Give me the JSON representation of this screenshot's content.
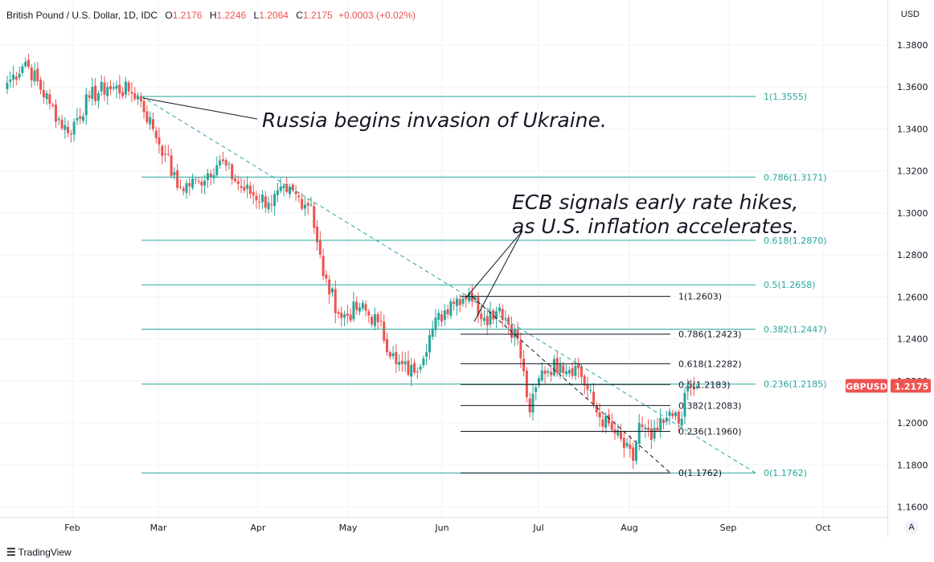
{
  "header": {
    "symbol_desc": "British Pound / U.S. Dollar, 1D, IDC",
    "open_label": "O",
    "open": "1.2176",
    "high_label": "H",
    "high": "1.2246",
    "low_label": "L",
    "low": "1.2064",
    "close_label": "C",
    "close": "1.2175",
    "change": "+0.0003 (+0.02%)"
  },
  "currency_label": "USD",
  "price_tag": {
    "symbol": "GBPUSD",
    "price": "1.2175",
    "color": "#ef5350"
  },
  "footer": {
    "brand": "TradingView"
  },
  "auto_button": "A",
  "colors": {
    "up": "#26a69a",
    "down": "#ef5350",
    "fib_green": "#26a69a",
    "fib_black": "#131722"
  },
  "chart_data": {
    "type": "candlestick",
    "title": "British Pound / U.S. Dollar, 1D, IDC",
    "x_ticks": [
      "Feb",
      "Mar",
      "Apr",
      "May",
      "Jun",
      "Jul",
      "Aug",
      "Sep",
      "Oct"
    ],
    "y_ticks": [
      "1.3800",
      "1.3600",
      "1.3400",
      "1.3200",
      "1.3000",
      "1.2800",
      "1.2600",
      "1.2400",
      "1.2200",
      "1.2000",
      "1.1800",
      "1.1600"
    ],
    "ylim": [
      1.156,
      1.39
    ],
    "grid": true,
    "anchors": [
      {
        "d": 0,
        "p": 1.362
      },
      {
        "d": 6,
        "p": 1.372
      },
      {
        "d": 14,
        "p": 1.352
      },
      {
        "d": 20,
        "p": 1.338
      },
      {
        "d": 27,
        "p": 1.355
      },
      {
        "d": 33,
        "p": 1.36
      },
      {
        "d": 40,
        "p": 1.358
      },
      {
        "d": 43,
        "p": 1.356
      },
      {
        "d": 48,
        "p": 1.34
      },
      {
        "d": 52,
        "p": 1.328
      },
      {
        "d": 56,
        "p": 1.312
      },
      {
        "d": 63,
        "p": 1.315
      },
      {
        "d": 70,
        "p": 1.325
      },
      {
        "d": 77,
        "p": 1.312
      },
      {
        "d": 86,
        "p": 1.305
      },
      {
        "d": 92,
        "p": 1.31
      },
      {
        "d": 100,
        "p": 1.304
      },
      {
        "d": 104,
        "p": 1.27
      },
      {
        "d": 110,
        "p": 1.25
      },
      {
        "d": 116,
        "p": 1.255
      },
      {
        "d": 122,
        "p": 1.248
      },
      {
        "d": 128,
        "p": 1.228
      },
      {
        "d": 134,
        "p": 1.224
      },
      {
        "d": 140,
        "p": 1.245
      },
      {
        "d": 146,
        "p": 1.258
      },
      {
        "d": 152,
        "p": 1.262
      },
      {
        "d": 157,
        "p": 1.25
      },
      {
        "d": 162,
        "p": 1.255
      },
      {
        "d": 168,
        "p": 1.24
      },
      {
        "d": 172,
        "p": 1.205
      },
      {
        "d": 176,
        "p": 1.225
      },
      {
        "d": 182,
        "p": 1.228
      },
      {
        "d": 188,
        "p": 1.226
      },
      {
        "d": 194,
        "p": 1.205
      },
      {
        "d": 200,
        "p": 1.195
      },
      {
        "d": 206,
        "p": 1.182
      },
      {
        "d": 208,
        "p": 1.2
      },
      {
        "d": 212,
        "p": 1.192
      },
      {
        "d": 216,
        "p": 1.2
      },
      {
        "d": 220,
        "p": 1.205
      },
      {
        "d": 222,
        "p": 1.202
      },
      {
        "d": 224,
        "p": 1.218
      },
      {
        "d": 226,
        "p": 1.216
      },
      {
        "d": 227,
        "p": 1.2175
      }
    ],
    "fib_primary": {
      "color": "#26a69a",
      "levels": [
        {
          "ratio": "1",
          "price": 1.3555,
          "label": "1(1.3555)"
        },
        {
          "ratio": "0.786",
          "price": 1.3171,
          "label": "0.786(1.3171)"
        },
        {
          "ratio": "0.618",
          "price": 1.287,
          "label": "0.618(1.2870)"
        },
        {
          "ratio": "0.5",
          "price": 1.2658,
          "label": "0.5(1.2658)"
        },
        {
          "ratio": "0.382",
          "price": 1.2447,
          "label": "0.382(1.2447)"
        },
        {
          "ratio": "0.236",
          "price": 1.2185,
          "label": "0.236(1.2185)"
        },
        {
          "ratio": "0",
          "price": 1.1762,
          "label": "0(1.1762)"
        }
      ]
    },
    "fib_secondary": {
      "color": "#131722",
      "levels": [
        {
          "ratio": "1",
          "price": 1.2603,
          "label": "1(1.2603)"
        },
        {
          "ratio": "0.786",
          "price": 1.2423,
          "label": "0.786(1.2423)"
        },
        {
          "ratio": "0.618",
          "price": 1.2282,
          "label": "0.618(1.2282)"
        },
        {
          "ratio": "0.5",
          "price": 1.2183,
          "label": "0.5(1.2183)"
        },
        {
          "ratio": "0.382",
          "price": 1.2083,
          "label": "0.382(1.2083)"
        },
        {
          "ratio": "0.236",
          "price": 1.196,
          "label": "0.236(1.1960)"
        },
        {
          "ratio": "0",
          "price": 1.1762,
          "label": "0(1.1762)"
        }
      ]
    },
    "annotations": [
      {
        "text": "Russia begins invasion of Ukraine."
      },
      {
        "text": "ECB signals early rate hikes,"
      },
      {
        "text": "as U.S. inflation accelerates."
      }
    ]
  }
}
